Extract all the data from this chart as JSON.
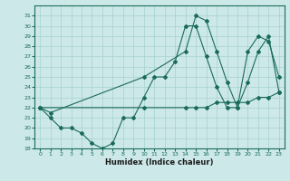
{
  "title": "",
  "xlabel": "Humidex (Indice chaleur)",
  "bg_color": "#cce8e8",
  "line_color": "#1a6b5a",
  "xlim": [
    0,
    23
  ],
  "ylim": [
    18,
    32
  ],
  "yticks": [
    18,
    19,
    20,
    21,
    22,
    23,
    24,
    25,
    26,
    27,
    28,
    29,
    30,
    31
  ],
  "xticks": [
    0,
    1,
    2,
    3,
    4,
    5,
    6,
    7,
    8,
    9,
    10,
    11,
    12,
    13,
    14,
    15,
    16,
    17,
    18,
    19,
    20,
    21,
    22,
    23
  ],
  "line1_x": [
    0,
    1,
    2,
    3,
    4,
    5,
    6,
    7,
    8,
    9,
    10,
    11,
    12,
    13,
    14,
    15,
    16,
    17,
    18,
    19,
    20,
    21,
    22,
    23
  ],
  "line1_y": [
    22,
    21,
    20,
    20,
    19.5,
    18.5,
    18,
    18.5,
    21,
    21,
    23,
    25,
    25,
    26.5,
    30,
    30,
    27,
    24,
    22,
    22,
    27.5,
    29,
    28.5,
    25
  ],
  "line2_x": [
    0,
    1,
    10,
    14,
    15,
    16,
    17,
    18,
    19,
    20,
    21,
    22,
    23
  ],
  "line2_y": [
    22,
    21.5,
    25,
    27.5,
    31,
    30.5,
    27.5,
    24.5,
    22,
    24.5,
    27.5,
    29,
    23.5
  ],
  "line3_x": [
    0,
    10,
    14,
    15,
    16,
    17,
    18,
    19,
    20,
    21,
    22,
    23
  ],
  "line3_y": [
    22,
    22,
    22,
    22,
    22,
    22.5,
    22.5,
    22.5,
    22.5,
    23,
    23,
    23.5
  ]
}
